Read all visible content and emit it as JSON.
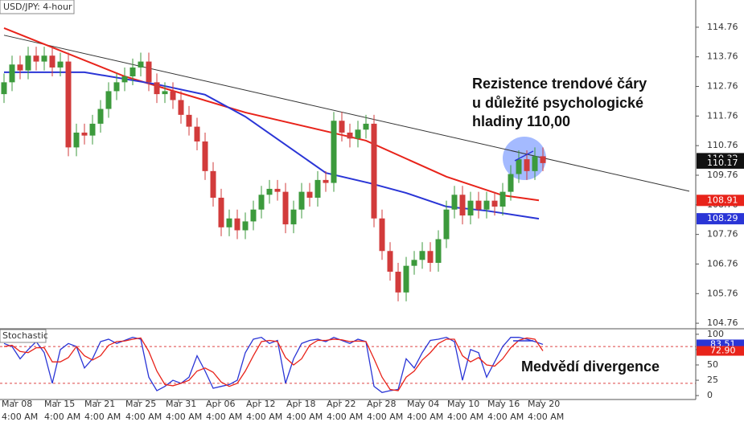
{
  "chart_data": [
    {
      "type": "candlestick",
      "title": "USD/JPY: 4-hour",
      "xlim": [
        -0.5,
        86
      ],
      "ylim": [
        104.6,
        115.68
      ],
      "xticks": [
        {
          "value": 1.3,
          "label": "Mar 08"
        },
        {
          "value": 6.6,
          "label": "Mar 15"
        },
        {
          "value": 11.6,
          "label": "Mar 21"
        },
        {
          "value": 16.7,
          "label": "Mar 25"
        },
        {
          "value": 21.7,
          "label": "Mar 31"
        },
        {
          "value": 26.7,
          "label": "Apr 06"
        },
        {
          "value": 31.7,
          "label": "Apr 12"
        },
        {
          "value": 36.7,
          "label": "Apr 18"
        },
        {
          "value": 41.7,
          "label": "Apr 22"
        },
        {
          "value": 46.7,
          "label": "Apr 28"
        },
        {
          "value": 51.7,
          "label": "May 04"
        },
        {
          "value": 56.7,
          "label": "May 10"
        },
        {
          "value": 61.7,
          "label": "May 16"
        },
        {
          "value": 66.7,
          "label": "May 20"
        }
      ],
      "xtick_time_label": "4:00 AM",
      "yticks": [
        104.76,
        105.76,
        106.76,
        107.76,
        108.76,
        109.76,
        110.76,
        111.76,
        112.76,
        113.76,
        114.76
      ],
      "up_color": "#3c9a3c",
      "down_color": "#d23b3b",
      "candles": {
        "open": [
          112.5,
          112.9,
          113.5,
          113.3,
          113.8,
          113.6,
          113.8,
          113.4,
          113.6,
          110.7,
          111.2,
          111.1,
          111.5,
          112.0,
          112.6,
          112.9,
          113.1,
          113.4,
          113.6,
          112.9,
          112.5,
          112.6,
          112.3,
          111.8,
          111.4,
          110.9,
          109.9,
          109.0,
          108.0,
          108.3,
          107.9,
          108.2,
          108.6,
          109.1,
          109.3,
          109.2,
          108.1,
          108.6,
          109.2,
          109.0,
          109.6,
          109.5,
          111.6,
          111.2,
          111.0,
          111.3,
          111.5,
          108.3,
          107.2,
          106.5,
          105.8,
          106.7,
          106.9,
          107.2,
          106.8,
          107.6,
          108.6,
          109.1,
          108.4,
          108.9,
          108.6,
          108.9,
          108.7,
          109.2,
          109.8,
          110.3,
          109.9,
          110.4
        ],
        "high": [
          113.2,
          113.8,
          113.8,
          114.1,
          114.1,
          114.1,
          114.1,
          113.9,
          113.9,
          111.5,
          111.5,
          111.8,
          112.3,
          112.9,
          113.2,
          113.4,
          113.7,
          113.9,
          113.9,
          113.2,
          112.9,
          112.9,
          112.6,
          112.1,
          111.7,
          111.2,
          110.2,
          109.3,
          108.6,
          108.6,
          108.5,
          108.9,
          109.4,
          109.6,
          109.6,
          109.5,
          108.9,
          109.5,
          109.5,
          109.9,
          109.9,
          111.9,
          111.9,
          111.5,
          111.6,
          111.8,
          111.8,
          108.6,
          107.5,
          106.8,
          107.0,
          107.2,
          107.5,
          107.5,
          107.9,
          108.9,
          109.4,
          109.4,
          109.2,
          109.2,
          109.2,
          109.2,
          109.5,
          110.1,
          110.6,
          110.6,
          110.7,
          110.7
        ],
        "low": [
          112.2,
          112.6,
          113.0,
          113.0,
          113.3,
          113.3,
          113.1,
          113.1,
          110.4,
          110.4,
          110.8,
          110.8,
          111.2,
          111.7,
          112.3,
          112.6,
          112.8,
          113.1,
          112.6,
          112.2,
          112.2,
          112.0,
          111.5,
          111.1,
          110.6,
          109.6,
          108.7,
          107.7,
          107.7,
          107.6,
          107.6,
          107.9,
          108.3,
          108.8,
          108.9,
          107.8,
          107.8,
          108.3,
          108.7,
          108.7,
          109.2,
          109.2,
          110.9,
          110.7,
          110.7,
          111.0,
          108.0,
          106.9,
          106.2,
          105.5,
          105.5,
          106.4,
          106.6,
          106.5,
          106.5,
          107.3,
          108.3,
          108.1,
          108.1,
          108.3,
          108.3,
          108.4,
          108.4,
          108.9,
          109.5,
          109.6,
          109.6,
          109.9
        ],
        "close": [
          112.9,
          113.5,
          113.3,
          113.8,
          113.6,
          113.8,
          113.4,
          113.6,
          110.7,
          111.2,
          111.1,
          111.5,
          112.0,
          112.6,
          112.9,
          113.1,
          113.4,
          113.6,
          112.9,
          112.5,
          112.6,
          112.3,
          111.8,
          111.4,
          110.9,
          109.9,
          109.0,
          108.0,
          108.3,
          107.9,
          108.2,
          108.6,
          109.1,
          109.3,
          109.2,
          108.1,
          108.6,
          109.2,
          109.0,
          109.6,
          109.5,
          111.6,
          111.2,
          111.0,
          111.3,
          111.5,
          108.3,
          107.2,
          106.5,
          105.8,
          106.7,
          106.9,
          107.2,
          106.8,
          107.6,
          108.6,
          109.1,
          108.4,
          108.9,
          108.6,
          108.9,
          108.7,
          109.2,
          109.8,
          110.3,
          109.9,
          110.4,
          110.17
        ]
      },
      "series": [
        {
          "color": "#e8231a",
          "x": [
            0,
            15,
            30,
            45,
            55,
            62,
            66.5
          ],
          "values": [
            114.73,
            113.1,
            111.88,
            110.93,
            109.71,
            109.08,
            108.91
          ]
        },
        {
          "color": "#2a35d6",
          "x": [
            0,
            10,
            19,
            25,
            30,
            35,
            40,
            45.5,
            50,
            55,
            60,
            66.5
          ],
          "values": [
            113.24,
            113.24,
            112.83,
            112.48,
            111.74,
            110.79,
            109.84,
            109.49,
            109.16,
            108.7,
            108.56,
            108.29
          ]
        }
      ],
      "trendline": {
        "color": "#333333",
        "x": [
          0,
          85.2
        ],
        "values": [
          114.49,
          109.22
        ]
      },
      "price_labels": [
        {
          "value": 110.32,
          "color": "#111111"
        },
        {
          "value": 110.17,
          "color": "#111111"
        },
        {
          "value": 108.91,
          "color": "#e8231a"
        },
        {
          "value": 108.29,
          "color": "#2a35d6"
        }
      ],
      "annotation": [
        "Rezistence trendové čáry",
        "u důležité psychologické",
        "hladiny 110,00"
      ]
    },
    {
      "type": "line",
      "title": "Stochastic",
      "ylim": [
        -6.4,
        109
      ],
      "yticks": [
        0,
        25,
        50,
        75,
        100
      ],
      "levels": [
        80,
        20
      ],
      "series": [
        {
          "color": "#2a35d6",
          "values": [
            85,
            80,
            60,
            75,
            88,
            70,
            20,
            75,
            85,
            80,
            45,
            60,
            88,
            92,
            85,
            90,
            95,
            92,
            30,
            8,
            15,
            25,
            20,
            30,
            65,
            40,
            12,
            15,
            18,
            25,
            70,
            92,
            95,
            85,
            90,
            20,
            60,
            85,
            90,
            92,
            88,
            95,
            90,
            85,
            92,
            88,
            15,
            5,
            8,
            10,
            60,
            45,
            70,
            90,
            92,
            95,
            88,
            25,
            75,
            70,
            30,
            55,
            80,
            95,
            95,
            92,
            88,
            83.51
          ]
        },
        {
          "color": "#e8231a",
          "values": [
            80,
            82,
            72,
            70,
            78,
            78,
            55,
            55,
            62,
            80,
            65,
            58,
            65,
            82,
            88,
            89,
            92,
            94,
            72,
            40,
            18,
            16,
            20,
            25,
            40,
            45,
            38,
            22,
            15,
            20,
            40,
            65,
            88,
            90,
            88,
            62,
            50,
            60,
            82,
            90,
            90,
            92,
            91,
            88,
            89,
            88,
            60,
            30,
            10,
            8,
            30,
            40,
            58,
            70,
            85,
            92,
            92,
            65,
            55,
            62,
            50,
            48,
            60,
            78,
            90,
            94,
            92,
            72.9
          ]
        }
      ],
      "value_labels": [
        {
          "value": 83.51,
          "color": "#2a35d6"
        },
        {
          "value": 72.9,
          "label": "72.90",
          "color": "#e8231a"
        }
      ],
      "annotation": "Medvědí divergence"
    }
  ]
}
